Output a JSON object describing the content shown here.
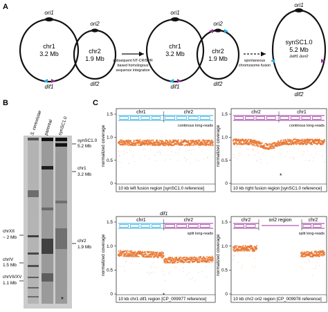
{
  "panels": {
    "a": "A",
    "b": "B",
    "c": "C"
  },
  "panel_a": {
    "chr1_label": "chr1",
    "chr1_size": "3.2 Mb",
    "ori1": "ori1",
    "dif1": "dif1",
    "chr2_label": "chr2",
    "chr2_size": "1.9 Mb",
    "ori2": "ori2",
    "dif2": "dif2",
    "step1_lines": [
      "subsequent NT-CRISPR",
      "based homologous",
      "sequence integration"
    ],
    "step2_lines": [
      "spontaneous",
      "chromosome fusion"
    ],
    "syn_label": "synSC1.0",
    "syn_size": "5.2 Mb",
    "syn_sub": "Δdif1 Δori2"
  },
  "panel_b": {
    "lane_headers": [
      "S. cerevisiae",
      "parental",
      "synSC1.0"
    ],
    "right_markers": [
      {
        "name": "synSC1.0",
        "size": "5.2 Mb"
      },
      {
        "name": "chr1",
        "size": "3.2 Mb"
      },
      {
        "name": "chr2",
        "size": "1.9 Mb"
      }
    ],
    "left_markers": [
      {
        "name": "chrXII",
        "size": "~ 2 Mb"
      },
      {
        "name": "chrIV",
        "size": "1.5 Mb"
      },
      {
        "name": "chrVII/XV",
        "size": "1.1 Mb"
      }
    ],
    "star": "*"
  },
  "panel_c": {
    "ylabel": "normalized coverage",
    "yticks": [
      "1.5",
      "1.0",
      "0.5",
      "0"
    ],
    "subplots": [
      {
        "segments": [
          "chr1",
          "chr2"
        ],
        "read_type": "continous long-reads",
        "caption": "10 kb left fusion region [synSC1.0 reference]"
      },
      {
        "segments": [
          "chr2",
          "chr1"
        ],
        "read_type": "continous long-reads",
        "caption": "10 kb right fusion region [synSC1.0 reference]",
        "star": "*"
      },
      {
        "segments": [
          "chr1",
          "chr2"
        ],
        "read_type": "split long-reads",
        "top_label": "dif1",
        "caption": "10 kb chr1 dif1 region [CP_009977 reference]",
        "star": "*"
      },
      {
        "segments": [
          "chr2",
          "ori2 region",
          "chr2"
        ],
        "read_type": "split long-reads",
        "caption": "10 kb chr2 ori2 region [CP_009978 reference]"
      }
    ]
  },
  "colors": {
    "cyan": "#29abe2",
    "purple": "#9b2f9e",
    "orange": "#e8742c",
    "black": "#111111"
  }
}
